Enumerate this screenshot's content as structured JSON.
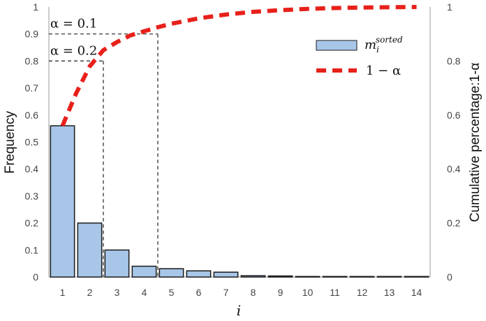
{
  "chart_data": {
    "type": "bar",
    "categories": [
      "1",
      "2",
      "3",
      "4",
      "5",
      "6",
      "7",
      "8",
      "9",
      "10",
      "11",
      "12",
      "13",
      "14"
    ],
    "xlabel": "i",
    "ylabel": "Frequency",
    "y2label": "Cumulative percentage:1-α",
    "ylim": [
      0,
      1
    ],
    "y2lim": [
      0,
      1
    ],
    "yticks": [
      "0",
      "0.1",
      "0.2",
      "0.3",
      "0.4",
      "0.5",
      "0.6",
      "0.7",
      "0.8",
      "0.9",
      "1"
    ],
    "y2ticks": [
      "0",
      "0.2",
      "0.4",
      "0.6",
      "0.8",
      "1"
    ],
    "grid": false,
    "legend_position": "top-right",
    "series": [
      {
        "name_base": "m",
        "name_sub": "i",
        "name_sup": "sorted",
        "kind": "bar",
        "color": "#a7c6e8",
        "edge_color": "#1a1a1a",
        "values": [
          0.56,
          0.2,
          0.1,
          0.04,
          0.031,
          0.023,
          0.018,
          0.005,
          0.004,
          0.002,
          0.002,
          0.002,
          0.002,
          0.002
        ]
      },
      {
        "name": "1 − α",
        "kind": "line",
        "axis": "right",
        "style": "dashed",
        "color": "#e8201a",
        "x": [
          1,
          1.5,
          2,
          2.5,
          3,
          3.5,
          4,
          4.5,
          5,
          6,
          7,
          8,
          9,
          10,
          11,
          12,
          13,
          14
        ],
        "values": [
          0.56,
          0.68,
          0.78,
          0.84,
          0.87,
          0.895,
          0.91,
          0.925,
          0.938,
          0.958,
          0.972,
          0.982,
          0.988,
          0.993,
          0.996,
          0.998,
          0.999,
          1.0
        ]
      }
    ],
    "annotations": [
      {
        "text": "α = 0.1",
        "level": 0.9,
        "x_cut": 4.5
      },
      {
        "text": "α = 0.2",
        "level": 0.8,
        "x_cut": 2.5
      }
    ]
  }
}
